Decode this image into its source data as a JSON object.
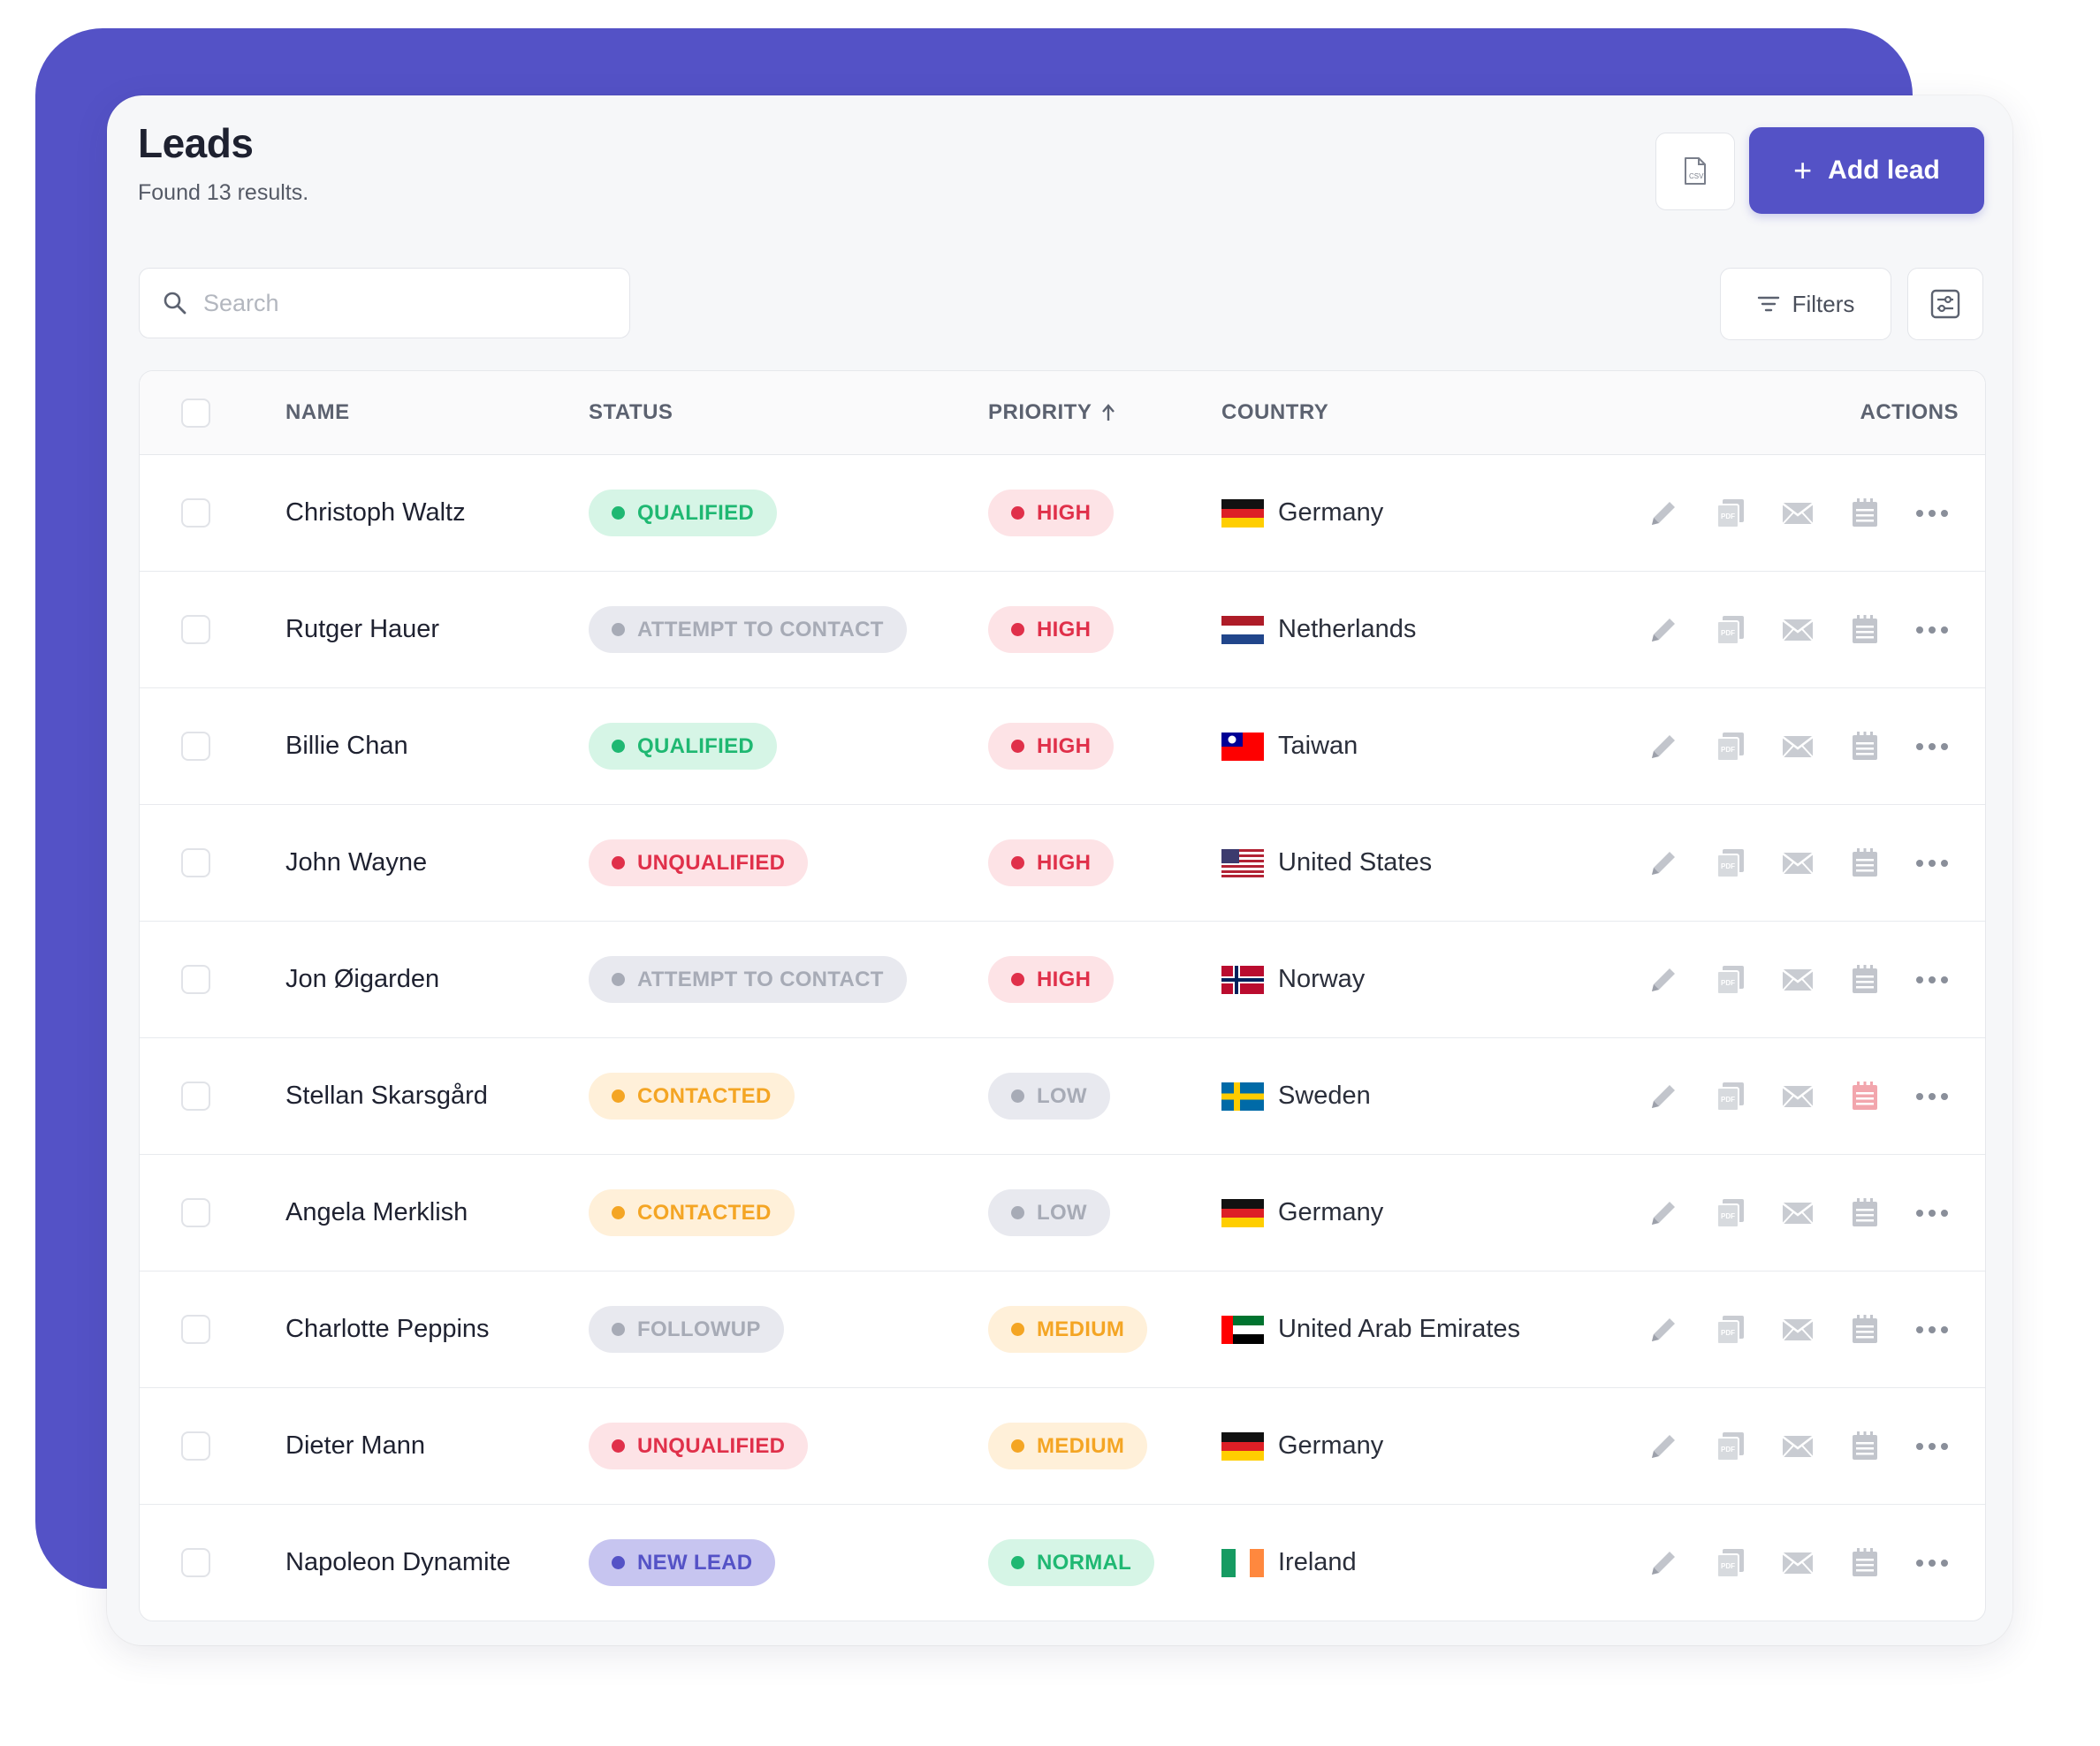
{
  "header": {
    "title": "Leads",
    "subtitle": "Found 13 results."
  },
  "toolbar": {
    "add_label": "Add lead",
    "filters_label": "Filters",
    "search_placeholder": "Search",
    "csv_icon": "csv-export-icon"
  },
  "columns": {
    "name": "NAME",
    "status": "STATUS",
    "priority": "PRIORITY",
    "country": "COUNTRY",
    "actions": "ACTIONS"
  },
  "colors": {
    "accent": "#5452c6",
    "qualified": "#1fb872",
    "unqualified": "#e0304a",
    "contacted": "#f4a524",
    "muted": "#a7abb6"
  },
  "rows": [
    {
      "name": "Christoph Waltz",
      "status": "QUALIFIED",
      "status_kind": "qualified",
      "priority": "HIGH",
      "priority_kind": "high",
      "country": "Germany",
      "flag": "de",
      "calendar_highlight": false
    },
    {
      "name": "Rutger Hauer",
      "status": "ATTEMPT TO CONTACT",
      "status_kind": "attempt",
      "priority": "HIGH",
      "priority_kind": "high",
      "country": "Netherlands",
      "flag": "nl",
      "calendar_highlight": false
    },
    {
      "name": "Billie Chan",
      "status": "QUALIFIED",
      "status_kind": "qualified",
      "priority": "HIGH",
      "priority_kind": "high",
      "country": "Taiwan",
      "flag": "tw",
      "calendar_highlight": false
    },
    {
      "name": "John Wayne",
      "status": "UNQUALIFIED",
      "status_kind": "unqualified",
      "priority": "HIGH",
      "priority_kind": "high",
      "country": "United States",
      "flag": "us",
      "calendar_highlight": false
    },
    {
      "name": "Jon Øigarden",
      "status": "ATTEMPT TO CONTACT",
      "status_kind": "attempt",
      "priority": "HIGH",
      "priority_kind": "high",
      "country": "Norway",
      "flag": "no",
      "calendar_highlight": false
    },
    {
      "name": "Stellan Skarsgård",
      "status": "CONTACTED",
      "status_kind": "contacted",
      "priority": "LOW",
      "priority_kind": "low",
      "country": "Sweden",
      "flag": "se",
      "calendar_highlight": true
    },
    {
      "name": "Angela Merklish",
      "status": "CONTACTED",
      "status_kind": "contacted",
      "priority": "LOW",
      "priority_kind": "low",
      "country": "Germany",
      "flag": "de",
      "calendar_highlight": false
    },
    {
      "name": "Charlotte Peppins",
      "status": "FOLLOWUP",
      "status_kind": "followup",
      "priority": "MEDIUM",
      "priority_kind": "medium",
      "country": "United Arab Emirates",
      "flag": "ae",
      "calendar_highlight": false
    },
    {
      "name": "Dieter Mann",
      "status": "UNQUALIFIED",
      "status_kind": "unqualified",
      "priority": "MEDIUM",
      "priority_kind": "medium",
      "country": "Germany",
      "flag": "de",
      "calendar_highlight": false
    },
    {
      "name": "Napoleon Dynamite",
      "status": "NEW LEAD",
      "status_kind": "newlead",
      "priority": "NORMAL",
      "priority_kind": "normal",
      "country": "Ireland",
      "flag": "ie",
      "calendar_highlight": false
    }
  ]
}
